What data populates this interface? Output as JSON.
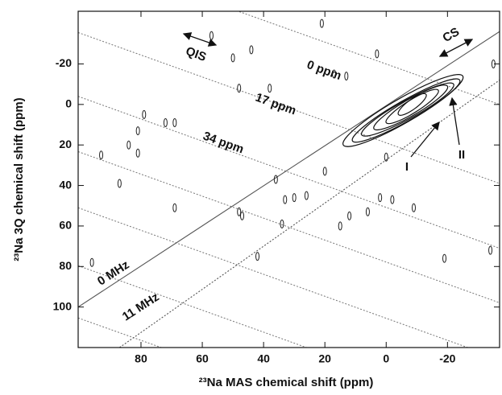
{
  "chart_data": {
    "type": "contour",
    "x_label": "²³Na MAS chemical shift (ppm)",
    "y_label": "²³Na 3Q chemical shift (ppm)",
    "xlim": [
      100.5,
      -37
    ],
    "ylim": [
      -46,
      120
    ],
    "xticks": [
      80,
      60,
      40,
      20,
      0,
      -20
    ],
    "yticks": [
      -20,
      0,
      20,
      40,
      60,
      80,
      100
    ],
    "contours": [
      {
        "x": [
          14,
          -25
        ],
        "y": [
          20,
          -14
        ],
        "width": 6
      },
      {
        "x": [
          11,
          -24
        ],
        "y": [
          18,
          -12
        ],
        "width": 5
      },
      {
        "x": [
          8,
          -22
        ],
        "y": [
          15,
          -10
        ],
        "width": 4.5
      },
      {
        "x": [
          4,
          -20
        ],
        "y": [
          12,
          -9
        ],
        "width": 4
      },
      {
        "x": [
          0,
          -17
        ],
        "y": [
          9,
          -7
        ],
        "width": 3.2
      },
      {
        "x": [
          -4,
          -13
        ],
        "y": [
          5,
          -5
        ],
        "width": 2.4
      }
    ],
    "peaks": {
      "x": [
        44,
        50,
        57,
        21,
        17,
        13,
        38,
        48,
        79,
        72,
        69,
        81,
        84,
        93,
        81,
        87,
        69,
        36,
        33,
        30,
        26,
        20,
        3,
        -35,
        -34,
        2,
        -2,
        -9,
        6,
        12,
        34,
        48,
        47,
        42,
        15,
        -19,
        96,
        0
      ],
      "y": [
        -27,
        -23,
        -34,
        -40,
        -15,
        -14,
        -8,
        -8,
        5,
        9,
        9,
        13,
        20,
        25,
        24,
        39,
        51,
        37,
        47,
        46,
        45,
        33,
        -25,
        -20,
        72,
        46,
        47,
        51,
        53,
        55,
        59,
        53,
        55,
        75,
        60,
        76,
        78,
        26
      ]
    },
    "qis_lines": [
      {
        "x": [
          47.9,
          -37
        ],
        "y": [
          -45.8,
          0
        ],
        "label": "0 ppm"
      },
      {
        "x": [
          100.5,
          -37
        ],
        "y": [
          -35.5,
          39
        ],
        "label": "17 ppm"
      },
      {
        "x": [
          100.5,
          -37
        ],
        "y": [
          -4,
          71
        ],
        "label": "34 ppm"
      },
      {
        "x": [
          100.5,
          -37
        ],
        "y": [
          23.3,
          97.9
        ]
      },
      {
        "x": [
          100.5,
          -26.6
        ],
        "y": [
          51,
          120
        ]
      },
      {
        "x": [
          100.5,
          26
        ],
        "y": [
          79.6,
          120
        ]
      },
      {
        "x": [
          100.5,
          73.4
        ],
        "y": [
          105.4,
          120
        ]
      }
    ],
    "cs_lines": [
      {
        "x": [
          100.5,
          -37
        ],
        "y": [
          100,
          -36
        ],
        "label": "0 MHz",
        "style": "solid"
      },
      {
        "x": [
          87,
          -37
        ],
        "y": [
          120,
          -12
        ],
        "label": "11 MHz",
        "style": "dotted"
      }
    ],
    "annotations": [
      "QIS",
      "CS",
      "I",
      "II"
    ]
  }
}
